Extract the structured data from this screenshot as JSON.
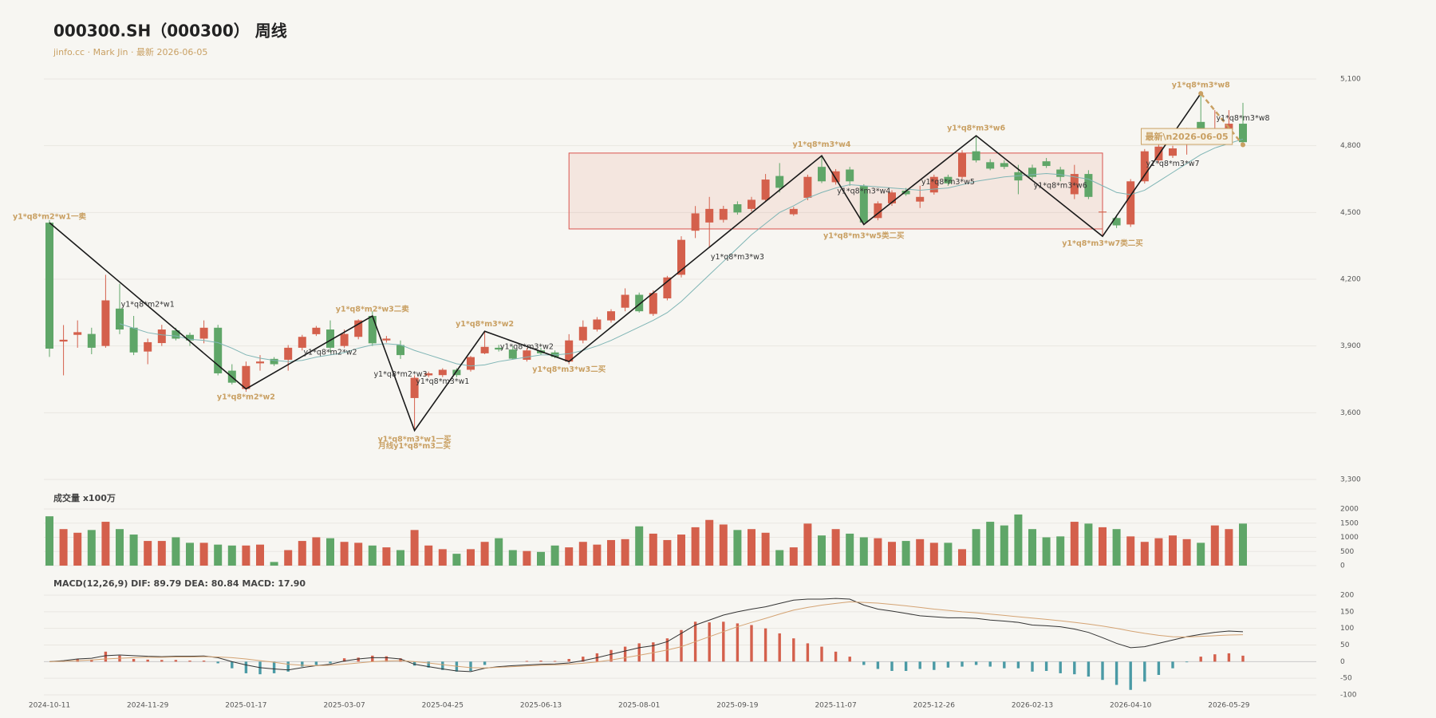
{
  "chart_data": {
    "type": "candlestick",
    "title": "000300.SH（000300） 周线",
    "subtitle": "jinfo.cc · Mark Jin · 最新 2026-06-05",
    "up_color": "#d4604c",
    "down_color": "#5fa668",
    "categories": [
      "2024-10-11",
      null,
      null,
      null,
      null,
      null,
      null,
      "2024-11-29",
      null,
      null,
      null,
      null,
      null,
      null,
      "2025-01-17",
      null,
      null,
      null,
      null,
      null,
      null,
      "2025-03-07",
      null,
      null,
      null,
      null,
      null,
      null,
      "2025-04-25",
      null,
      null,
      null,
      null,
      null,
      null,
      "2025-06-13",
      null,
      null,
      null,
      null,
      null,
      null,
      "2025-08-01",
      null,
      null,
      null,
      null,
      null,
      null,
      "2025-09-19",
      null,
      null,
      null,
      null,
      null,
      null,
      "2025-11-07",
      null,
      null,
      null,
      null,
      null,
      null,
      "2025-12-26",
      null,
      null,
      null,
      null,
      null,
      null,
      "2026-02-13",
      null,
      null,
      null,
      null,
      null,
      null,
      "2026-04-10",
      null,
      null,
      null,
      null,
      null,
      null,
      "2026-05-29",
      null
    ],
    "ohlc": [
      [
        4454,
        4466,
        3851,
        3888
      ],
      [
        3920,
        3994,
        3768,
        3928
      ],
      [
        3950,
        4015,
        3892,
        3962
      ],
      [
        3954,
        3982,
        3863,
        3892
      ],
      [
        3900,
        4220,
        3892,
        4105
      ],
      [
        4068,
        4180,
        3953,
        3974
      ],
      [
        3982,
        4035,
        3859,
        3871
      ],
      [
        3875,
        3933,
        3818,
        3917
      ],
      [
        3913,
        3995,
        3900,
        3974
      ],
      [
        3970,
        3982,
        3925,
        3933
      ],
      [
        3950,
        3960,
        3900,
        3925
      ],
      [
        3933,
        4015,
        3912,
        3982
      ],
      [
        3982,
        3995,
        3768,
        3777
      ],
      [
        3789,
        3818,
        3727,
        3735
      ],
      [
        3707,
        3830,
        3694,
        3810
      ],
      [
        3822,
        3859,
        3789,
        3830
      ],
      [
        3842,
        3850,
        3810,
        3818
      ],
      [
        3838,
        3904,
        3789,
        3892
      ],
      [
        3892,
        3950,
        3880,
        3941
      ],
      [
        3953,
        3990,
        3945,
        3982
      ],
      [
        3974,
        4015,
        3871,
        3892
      ],
      [
        3900,
        3974,
        3892,
        3954
      ],
      [
        3941,
        4020,
        3930,
        4015
      ],
      [
        4035,
        4056,
        3900,
        3912
      ],
      [
        3925,
        3945,
        3915,
        3933
      ],
      [
        3904,
        3925,
        3842,
        3859
      ],
      [
        3666,
        3768,
        3520,
        3757
      ],
      [
        3768,
        3785,
        3760,
        3777
      ],
      [
        3769,
        3800,
        3760,
        3793
      ],
      [
        3793,
        3800,
        3760,
        3769
      ],
      [
        3793,
        3855,
        3785,
        3850
      ],
      [
        3867,
        3966,
        3863,
        3896
      ],
      [
        3892,
        3905,
        3875,
        3884
      ],
      [
        3884,
        3900,
        3838,
        3843
      ],
      [
        3838,
        3890,
        3830,
        3880
      ],
      [
        3880,
        3892,
        3860,
        3867
      ],
      [
        3871,
        3880,
        3845,
        3851
      ],
      [
        3830,
        3953,
        3818,
        3925
      ],
      [
        3925,
        4015,
        3912,
        3986
      ],
      [
        3974,
        4030,
        3965,
        4019
      ],
      [
        4015,
        4065,
        4005,
        4056
      ],
      [
        4072,
        4159,
        4056,
        4130
      ],
      [
        4130,
        4140,
        4050,
        4056
      ],
      [
        4044,
        4150,
        4035,
        4138
      ],
      [
        4114,
        4215,
        4105,
        4208
      ],
      [
        4220,
        4393,
        4208,
        4377
      ],
      [
        4418,
        4529,
        4385,
        4496
      ],
      [
        4455,
        4570,
        4344,
        4516
      ],
      [
        4467,
        4530,
        4455,
        4516
      ],
      [
        4537,
        4550,
        4490,
        4500
      ],
      [
        4516,
        4570,
        4505,
        4557
      ],
      [
        4557,
        4673,
        4549,
        4648
      ],
      [
        4664,
        4722,
        4590,
        4611
      ],
      [
        4492,
        4525,
        4485,
        4516
      ],
      [
        4566,
        4670,
        4555,
        4660
      ],
      [
        4705,
        4755,
        4632,
        4640
      ],
      [
        4636,
        4695,
        4625,
        4685
      ],
      [
        4693,
        4705,
        4620,
        4640
      ],
      [
        4619,
        4627,
        4446,
        4455
      ],
      [
        4475,
        4550,
        4465,
        4541
      ],
      [
        4541,
        4600,
        4530,
        4590
      ],
      [
        4598,
        4610,
        4575,
        4582
      ],
      [
        4549,
        4620,
        4520,
        4570
      ],
      [
        4590,
        4670,
        4580,
        4660
      ],
      [
        4660,
        4670,
        4620,
        4631
      ],
      [
        4660,
        4780,
        4650,
        4767
      ],
      [
        4775,
        4845,
        4725,
        4734
      ],
      [
        4726,
        4740,
        4690,
        4697
      ],
      [
        4722,
        4735,
        4695,
        4705
      ],
      [
        4681,
        4714,
        4582,
        4644
      ],
      [
        4701,
        4715,
        4650,
        4660
      ],
      [
        4730,
        4745,
        4700,
        4709
      ],
      [
        4693,
        4705,
        4640,
        4660
      ],
      [
        4582,
        4714,
        4560,
        4673
      ],
      [
        4673,
        4690,
        4560,
        4570
      ],
      [
        4500,
        4512,
        4393,
        4504
      ],
      [
        4475,
        4490,
        4430,
        4442
      ],
      [
        4446,
        4650,
        4435,
        4640
      ],
      [
        4640,
        4785,
        4630,
        4775
      ],
      [
        4734,
        4805,
        4720,
        4796
      ],
      [
        4755,
        4800,
        4745,
        4788
      ],
      [
        4858,
        4880,
        4760,
        4878
      ],
      [
        4907,
        5035,
        4837,
        4853
      ],
      [
        4858,
        4960,
        4837,
        4870
      ],
      [
        4870,
        4960,
        4830,
        4899
      ],
      [
        4899,
        4993,
        4796,
        4816
      ]
    ],
    "ma": [
      null,
      null,
      null,
      null,
      null,
      4000,
      3980,
      3960,
      3950,
      3945,
      3930,
      3925,
      3915,
      3890,
      3860,
      3845,
      3835,
      3830,
      3835,
      3850,
      3860,
      3870,
      3890,
      3905,
      3910,
      3905,
      3880,
      3860,
      3840,
      3820,
      3810,
      3815,
      3830,
      3840,
      3850,
      3860,
      3860,
      3865,
      3880,
      3900,
      3925,
      3955,
      3985,
      4015,
      4050,
      4100,
      4160,
      4220,
      4280,
      4340,
      4400,
      4450,
      4500,
      4530,
      4565,
      4590,
      4610,
      4625,
      4620,
      4615,
      4610,
      4605,
      4600,
      4605,
      4610,
      4625,
      4640,
      4650,
      4660,
      4665,
      4670,
      4675,
      4670,
      4660,
      4650,
      4620,
      4590,
      4580,
      4600,
      4640,
      4680,
      4720,
      4760,
      4790,
      4810,
      4830
    ],
    "ma_color": "#7fb5b5",
    "ylim": [
      3300,
      5100
    ],
    "yticks": [
      {
        "value": 3300,
        "label": "3,300"
      },
      {
        "value": 3600,
        "label": "3,600"
      },
      {
        "value": 3900,
        "label": "3,900"
      },
      {
        "value": 4200,
        "label": "4,200"
      },
      {
        "value": 4500,
        "label": "4,500"
      },
      {
        "value": 4800,
        "label": "4,800"
      },
      {
        "value": 5100,
        "label": "5,100"
      }
    ],
    "zone": {
      "from": 37,
      "to": 75,
      "top": 4767,
      "bottom": 4426
    },
    "zigzag": [
      {
        "at": 0,
        "price": 4454
      },
      {
        "at": 14,
        "price": 3707
      },
      {
        "at": 23,
        "price": 4035
      },
      {
        "at": 26,
        "price": 3520
      },
      {
        "at": 31,
        "price": 3966
      },
      {
        "at": 37,
        "price": 3830
      },
      {
        "at": 55,
        "price": 4755
      },
      {
        "at": 58,
        "price": 4446
      },
      {
        "at": 66,
        "price": 4845
      },
      {
        "at": 75,
        "price": 4393
      },
      {
        "at": 82,
        "price": 5035
      }
    ],
    "projection": {
      "at": 85,
      "price": 4804
    },
    "annotations": [
      {
        "text": "y1*q8*m2*w1一卖",
        "at": 0,
        "price": 4480,
        "style": "key"
      },
      {
        "text": "y1*q8*m2*w1",
        "at": 7,
        "price": 4085,
        "style": "minor"
      },
      {
        "text": "y1*q8*m2*w2",
        "at": 14,
        "price": 3670,
        "style": "key"
      },
      {
        "text": "y1*q8*m2*w2",
        "at": 20,
        "price": 3871,
        "style": "minor"
      },
      {
        "text": "y1*q8*m2*w3二卖",
        "at": 23,
        "price": 4064,
        "style": "key"
      },
      {
        "text": "y1*q8*m2*w3",
        "at": 25,
        "price": 3772,
        "style": "minor"
      },
      {
        "text": "y1*q8*m3*w1一买",
        "at": 26,
        "price": 3480,
        "style": "key"
      },
      {
        "text": "月线y1*q8*m3二买",
        "at": 26,
        "price": 3448,
        "style": "key"
      },
      {
        "text": "y1*q8*m3*w1",
        "at": 28,
        "price": 3740,
        "style": "minor"
      },
      {
        "text": "y1*q8*m3*w2",
        "at": 31,
        "price": 3998,
        "style": "key"
      },
      {
        "text": "y1*q8*m3*w2",
        "at": 34,
        "price": 3896,
        "style": "minor"
      },
      {
        "text": "y1*q8*m3*w3二买",
        "at": 37,
        "price": 3793,
        "style": "key"
      },
      {
        "text": "y1*q8*m3*w3",
        "at": 49,
        "price": 4298,
        "style": "minor"
      },
      {
        "text": "y1*q8*m3*w4",
        "at": 55,
        "price": 4804,
        "style": "key"
      },
      {
        "text": "y1*q8*m3*w4",
        "at": 58,
        "price": 4594,
        "style": "minor"
      },
      {
        "text": "y1*q8*m3*w5类二买",
        "at": 58,
        "price": 4393,
        "style": "key"
      },
      {
        "text": "y1*q8*m3*w5",
        "at": 64,
        "price": 4636,
        "style": "minor"
      },
      {
        "text": "y1*q8*m3*w6",
        "at": 66,
        "price": 4878,
        "style": "key"
      },
      {
        "text": "y1*q8*m3*w6",
        "at": 72,
        "price": 4619,
        "style": "minor"
      },
      {
        "text": "y1*q8*m3*w7类二买",
        "at": 75,
        "price": 4360,
        "style": "key"
      },
      {
        "text": "y1*q8*m3*w7",
        "at": 80,
        "price": 4718,
        "style": "minor"
      },
      {
        "text": "y1*q8*m3*w8",
        "at": 82,
        "price": 5071,
        "style": "key"
      },
      {
        "text": "y1*q8*m3*w8",
        "at": 85,
        "price": 4923,
        "style": "minor"
      }
    ],
    "latest_label": {
      "text": "最新\\n2026-06-05",
      "at": 81,
      "price": 4838
    },
    "volume": {
      "title": "成交量 x100万",
      "values": [
        1742,
        1290,
        1161,
        1258,
        1548,
        1290,
        1097,
        871,
        871,
        1000,
        806,
        806,
        742,
        710,
        710,
        742,
        129,
        548,
        871,
        1000,
        968,
        839,
        806,
        710,
        645,
        548,
        1258,
        710,
        581,
        419,
        581,
        839,
        968,
        548,
        516,
        484,
        710,
        645,
        839,
        742,
        903,
        935,
        1387,
        1129,
        903,
        1097,
        1355,
        1613,
        1452,
        1258,
        1290,
        1161,
        548,
        645,
        1484,
        1065,
        1290,
        1129,
        1000,
        968,
        839,
        871,
        935,
        806,
        806,
        581,
        1290,
        1548,
        1419,
        1806,
        1290,
        1000,
        1032,
        1548,
        1484,
        1355,
        1290,
        1032,
        839,
        968,
        1065,
        935,
        806,
        1419,
        1290,
        1484
      ],
      "ylim": [
        0,
        2000
      ],
      "yticks": [
        0,
        500,
        1000,
        1500,
        2000
      ]
    },
    "macd": {
      "title": "MACD(12,26,9) DIF: 89.79 DEA: 80.84 MACD: 17.90",
      "hist": [
        0,
        2,
        8,
        6,
        30,
        18,
        8,
        6,
        5,
        5,
        3,
        3,
        -5,
        -20,
        -35,
        -38,
        -35,
        -30,
        -15,
        -10,
        -5,
        10,
        12,
        18,
        16,
        10,
        -12,
        -18,
        -25,
        -30,
        -28,
        -10,
        0,
        0,
        2,
        3,
        2,
        8,
        15,
        25,
        35,
        45,
        55,
        58,
        70,
        95,
        120,
        118,
        120,
        115,
        110,
        100,
        85,
        70,
        55,
        45,
        30,
        15,
        -10,
        -22,
        -28,
        -28,
        -22,
        -25,
        -18,
        -15,
        -10,
        -15,
        -20,
        -20,
        -30,
        -28,
        -35,
        -38,
        -45,
        -55,
        -70,
        -85,
        -60,
        -40,
        -20,
        -2,
        15,
        22,
        25,
        17.9
      ],
      "dif": [
        0,
        3,
        8,
        10,
        18,
        20,
        18,
        16,
        15,
        16,
        16,
        17,
        12,
        0,
        -10,
        -18,
        -22,
        -25,
        -18,
        -12,
        -8,
        2,
        8,
        12,
        12,
        8,
        -8,
        -15,
        -22,
        -28,
        -30,
        -20,
        -15,
        -12,
        -10,
        -8,
        -7,
        -4,
        3,
        12,
        22,
        32,
        42,
        48,
        60,
        85,
        110,
        125,
        140,
        150,
        158,
        165,
        175,
        185,
        188,
        188,
        190,
        188,
        170,
        158,
        152,
        145,
        138,
        135,
        132,
        132,
        130,
        125,
        122,
        118,
        110,
        108,
        105,
        98,
        88,
        72,
        55,
        42,
        45,
        55,
        65,
        75,
        82,
        88,
        92,
        89.79
      ],
      "dea": [
        0,
        1,
        3,
        5,
        8,
        10,
        12,
        13,
        13,
        14,
        14,
        15,
        14,
        12,
        8,
        3,
        -2,
        -8,
        -11,
        -12,
        -11,
        -8,
        -4,
        0,
        2,
        3,
        0,
        -4,
        -9,
        -14,
        -18,
        -19,
        -17,
        -15,
        -13,
        -11,
        -10,
        -8,
        -5,
        -1,
        5,
        12,
        19,
        27,
        35,
        45,
        60,
        75,
        90,
        105,
        118,
        130,
        143,
        155,
        163,
        170,
        175,
        180,
        178,
        176,
        172,
        168,
        163,
        158,
        154,
        150,
        147,
        143,
        139,
        135,
        131,
        127,
        123,
        118,
        113,
        107,
        100,
        92,
        85,
        79,
        75,
        74,
        76,
        78,
        80,
        80.84
      ],
      "dif_color": "#333333",
      "dea_color": "#d4a373",
      "pos_color": "#d4604c",
      "neg_color": "#4a9aa5",
      "ylim": [
        -100,
        200
      ],
      "yticks": [
        -100,
        -50,
        0,
        50,
        100,
        150,
        200
      ]
    }
  }
}
